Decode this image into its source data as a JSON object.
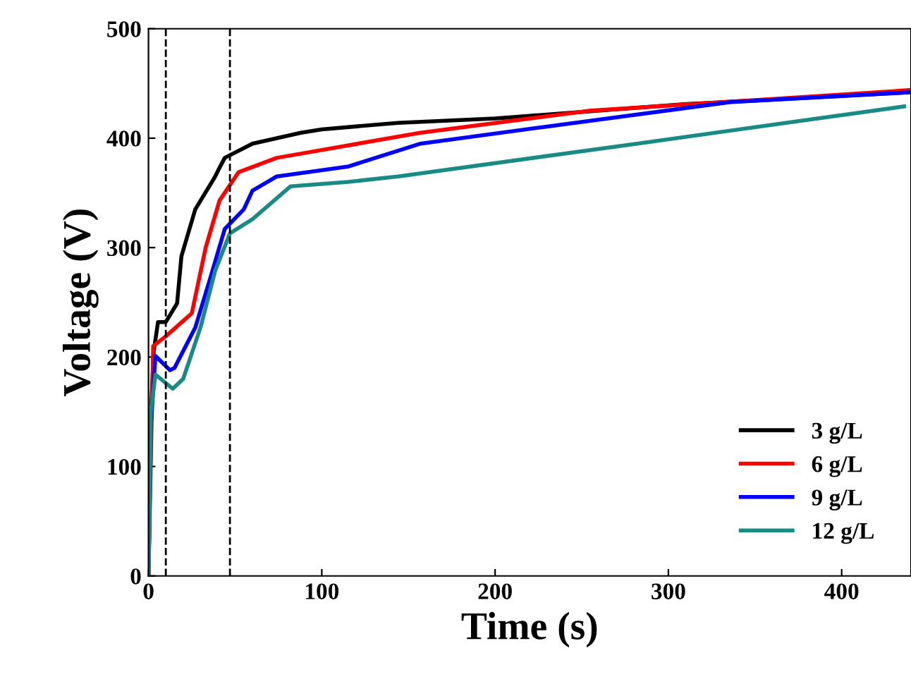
{
  "chart_data": {
    "type": "line",
    "xlabel": "Time (s)",
    "ylabel": "Voltage (V)",
    "xlim": [
      0,
      440
    ],
    "ylim": [
      0,
      500
    ],
    "xticks": [
      0,
      100,
      200,
      300,
      400
    ],
    "yticks": [
      0,
      100,
      200,
      300,
      400,
      500
    ],
    "grid": false,
    "legend": "bottom right",
    "marker": "none",
    "line_style": "solid",
    "ref_lines": [
      {
        "axis": "x",
        "value": 10,
        "color": "#000000",
        "line_style": "dashed"
      },
      {
        "axis": "x",
        "value": 47,
        "color": "#000000",
        "line_style": "dashed"
      }
    ],
    "series": [
      {
        "name": "3 g/L",
        "color": "#000000",
        "x": [
          0,
          1.5,
          3,
          5.5,
          10,
          16.5,
          19,
          27,
          38.5,
          41,
          44,
          60,
          88,
          100,
          144,
          200,
          309,
          440
        ],
        "values": [
          0,
          150,
          205,
          232,
          232,
          249,
          292,
          335,
          365,
          373,
          382,
          395,
          405,
          408,
          414,
          418,
          431,
          442
        ]
      },
      {
        "name": "6 g/L",
        "color": "#ff0000",
        "x": [
          0,
          2.7,
          10,
          25,
          33,
          41,
          52,
          74,
          157,
          254,
          440
        ],
        "values": [
          0,
          210,
          219,
          240,
          300,
          343,
          369,
          382,
          405,
          425,
          444
        ]
      },
      {
        "name": "9 g/L",
        "color": "#0000ff",
        "x": [
          0,
          1.5,
          4,
          12.4,
          15,
          27,
          36,
          44,
          55,
          60,
          74,
          115,
          157,
          227,
          336,
          440
        ],
        "values": [
          0,
          140,
          201,
          188,
          190,
          227,
          274,
          317,
          335,
          352,
          365,
          374,
          395,
          410,
          433,
          442
        ]
      },
      {
        "name": "12 g/L",
        "color": "#1a8a85",
        "x": [
          0,
          1.4,
          4,
          14,
          20,
          30,
          38.5,
          47,
          60,
          82,
          115,
          144,
          282,
          436
        ],
        "values": [
          0,
          150,
          184,
          171,
          180,
          227,
          279,
          313,
          326,
          356,
          360,
          365,
          395,
          429
        ]
      }
    ]
  }
}
